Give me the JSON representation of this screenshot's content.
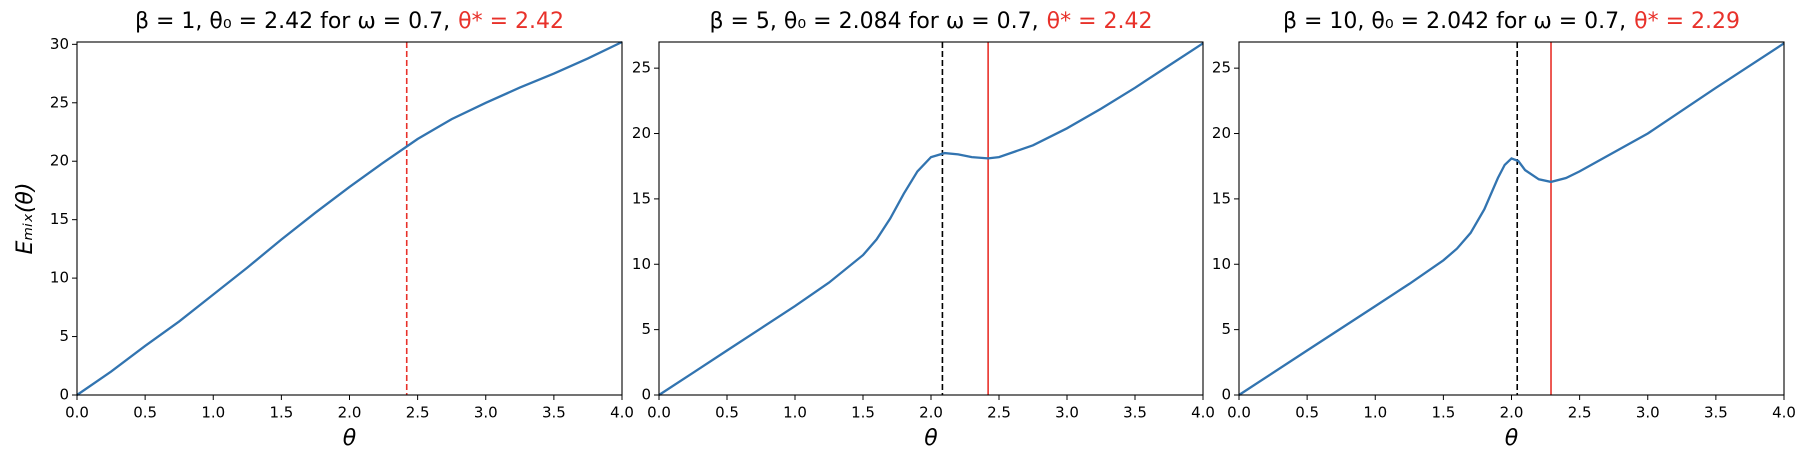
{
  "chart_data": [
    {
      "type": "line",
      "title": "β = 1, θ₀ = 2.42 for ω = 0.7,",
      "title_highlight": "θ* = 2.42",
      "title_highlight_color": "#e8312a",
      "xlabel": "θ",
      "ylabel": "Eₘᵢₓ(θ)",
      "x": [
        0,
        0.25,
        0.5,
        0.75,
        1,
        1.25,
        1.5,
        1.75,
        2,
        2.25,
        2.5,
        2.75,
        3,
        3.25,
        3.5,
        3.75,
        4
      ],
      "series": [
        {
          "color": "#3274b0",
          "values": [
            0,
            2,
            4.2,
            6.3,
            8.6,
            10.9,
            13.3,
            15.6,
            17.8,
            19.9,
            21.9,
            23.6,
            25.0,
            26.3,
            27.5,
            28.8,
            30.2
          ]
        }
      ],
      "vlines": [
        {
          "x": 2.42,
          "color": "#e8312a",
          "dashed": true
        }
      ],
      "xlim": [
        0,
        4
      ],
      "ylim": [
        0,
        30.2
      ],
      "xticks": [
        {
          "value": 0,
          "label": "0.0"
        },
        0.5,
        {
          "value": 1,
          "label": "1.0"
        },
        1.5,
        {
          "value": 2,
          "label": "2.0"
        },
        2.5,
        {
          "value": 3,
          "label": "3.0"
        },
        3.5,
        {
          "value": 4,
          "label": "4.0"
        }
      ],
      "yticks": [
        0,
        5,
        10,
        15,
        20,
        25,
        30
      ]
    },
    {
      "type": "line",
      "title": "β = 5, θ₀ = 2.084 for ω = 0.7,",
      "title_highlight": "θ* = 2.42",
      "title_highlight_color": "#e8312a",
      "xlabel": "θ",
      "x": [
        0,
        0.25,
        0.5,
        0.75,
        1,
        1.25,
        1.5,
        1.6,
        1.7,
        1.8,
        1.9,
        2.0,
        2.1,
        2.2,
        2.3,
        2.42,
        2.5,
        2.75,
        3,
        3.25,
        3.5,
        3.75,
        4
      ],
      "series": [
        {
          "color": "#3274b0",
          "values": [
            0,
            1.7,
            3.4,
            5.1,
            6.8,
            8.6,
            10.7,
            11.9,
            13.5,
            15.4,
            17.1,
            18.2,
            18.5,
            18.4,
            18.2,
            18.1,
            18.2,
            19.1,
            20.4,
            21.9,
            23.5,
            25.2,
            26.9
          ]
        }
      ],
      "vlines": [
        {
          "x": 2.084,
          "color": "#000000",
          "dashed": true
        },
        {
          "x": 2.42,
          "color": "#e8312a",
          "dashed": false
        }
      ],
      "xlim": [
        0,
        4
      ],
      "ylim": [
        0,
        27
      ],
      "xticks": [
        {
          "value": 0,
          "label": "0.0"
        },
        0.5,
        {
          "value": 1,
          "label": "1.0"
        },
        1.5,
        {
          "value": 2,
          "label": "2.0"
        },
        2.5,
        {
          "value": 3,
          "label": "3.0"
        },
        3.5,
        {
          "value": 4,
          "label": "4.0"
        }
      ],
      "yticks": [
        0,
        5,
        10,
        15,
        20,
        25
      ]
    },
    {
      "type": "line",
      "title": "β = 10, θ₀ = 2.042 for ω = 0.7,",
      "title_highlight": "θ* = 2.29",
      "title_highlight_color": "#e8312a",
      "xlabel": "θ",
      "x": [
        0,
        0.5,
        1,
        1.25,
        1.5,
        1.6,
        1.7,
        1.8,
        1.9,
        1.95,
        2.0,
        2.05,
        2.1,
        2.2,
        2.29,
        2.4,
        2.5,
        3,
        3.5,
        4
      ],
      "series": [
        {
          "color": "#3274b0",
          "values": [
            0,
            3.4,
            6.8,
            8.5,
            10.3,
            11.2,
            12.4,
            14.2,
            16.6,
            17.6,
            18.1,
            17.9,
            17.2,
            16.5,
            16.3,
            16.6,
            17.1,
            20.0,
            23.5,
            26.9
          ]
        }
      ],
      "vlines": [
        {
          "x": 2.042,
          "color": "#000000",
          "dashed": true
        },
        {
          "x": 2.29,
          "color": "#e8312a",
          "dashed": false
        }
      ],
      "xlim": [
        0,
        4
      ],
      "ylim": [
        0,
        27
      ],
      "xticks": [
        {
          "value": 0,
          "label": "0.0"
        },
        0.5,
        {
          "value": 1,
          "label": "1.0"
        },
        1.5,
        {
          "value": 2,
          "label": "2.0"
        },
        2.5,
        {
          "value": 3,
          "label": "3.0"
        },
        3.5,
        {
          "value": 4,
          "label": "4.0"
        }
      ],
      "yticks": [
        0,
        5,
        10,
        15,
        20,
        25
      ]
    }
  ]
}
